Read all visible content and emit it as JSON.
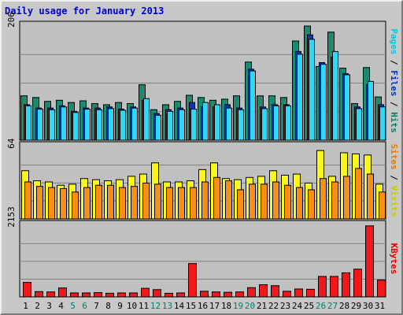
{
  "chart_data": {
    "type": "bar",
    "title": "Daily usage for January 2013",
    "categories": [
      "1",
      "2",
      "3",
      "4",
      "5",
      "6",
      "7",
      "8",
      "9",
      "10",
      "11",
      "12",
      "13",
      "14",
      "15",
      "16",
      "17",
      "18",
      "19",
      "20",
      "21",
      "22",
      "23",
      "24",
      "25",
      "26",
      "27",
      "28",
      "29",
      "30",
      "31"
    ],
    "weekend_days": [
      "5",
      "6",
      "12",
      "13",
      "19",
      "20",
      "26",
      "27"
    ],
    "panels": [
      {
        "name": "hits-files-pages",
        "ymax_label": "206",
        "ymax": 206,
        "side_label": [
          {
            "text": "Pages",
            "color": "#00c8e8"
          },
          {
            "text": " / ",
            "color": "#000000"
          },
          {
            "text": "Files",
            "color": "#0030d0"
          },
          {
            "text": " / ",
            "color": "#000000"
          },
          {
            "text": "Hits",
            "color": "#00806a"
          }
        ],
        "series": [
          {
            "name": "Hits",
            "color": "#1b8a6e",
            "values": [
              80,
              77,
              70,
              72,
              68,
              71,
              66,
              64,
              68,
              66,
              100,
              55,
              64,
              70,
              81,
              77,
              72,
              74,
              80,
              141,
              80,
              80,
              77,
              179,
              206,
              133,
              195,
              130,
              66,
              131,
              78
            ]
          },
          {
            "name": "Files",
            "color": "#0a34c0",
            "values": [
              64,
              58,
              58,
              62,
              52,
              58,
              58,
              60,
              56,
              60,
              72,
              48,
              55,
              58,
              68,
              60,
              60,
              64,
              58,
              128,
              60,
              64,
              64,
              160,
              190,
              140,
              150,
              120,
              60,
              100,
              64
            ]
          },
          {
            "name": "Pages",
            "color": "#30d8f8",
            "values": [
              62,
              56,
              55,
              60,
              50,
              56,
              55,
              57,
              54,
              58,
              75,
              45,
              52,
              55,
              56,
              68,
              64,
              58,
              55,
              125,
              57,
              62,
              62,
              155,
              182,
              137,
              160,
              118,
              57,
              106,
              60
            ]
          }
        ]
      },
      {
        "name": "visits-sites",
        "ymax_label": "64",
        "ymax": 64,
        "side_label": [
          {
            "text": "Sites",
            "color": "#e87800"
          },
          {
            "text": " / ",
            "color": "#000000"
          },
          {
            "text": "Visits",
            "color": "#c8c800"
          }
        ],
        "series": [
          {
            "name": "Visits",
            "color": "#f8f820",
            "values": [
              43,
              34,
              33,
              30,
              31,
              36,
              35,
              34,
              35,
              38,
              40,
              50,
              33,
              33,
              34,
              44,
              50,
              36,
              35,
              37,
              38,
              43,
              39,
              40,
              32,
              61,
              38,
              59,
              58,
              57,
              31
            ]
          },
          {
            "name": "Sites",
            "color": "#f89018",
            "values": [
              33,
              29,
              28,
              27,
              24,
              28,
              30,
              30,
              28,
              29,
              32,
              31,
              28,
              28,
              28,
              33,
              37,
              34,
              26,
              31,
              31,
              33,
              30,
              28,
              26,
              36,
              33,
              38,
              45,
              40,
              24
            ]
          }
        ]
      },
      {
        "name": "kbytes",
        "ymax_label": "2153",
        "ymax": 2153,
        "side_label": [
          {
            "text": "KBytes",
            "color": "#e80000"
          }
        ],
        "series": [
          {
            "name": "KBytes",
            "color": "#f01818",
            "values": [
              440,
              160,
              150,
              270,
              120,
              120,
              130,
              110,
              120,
              120,
              260,
              220,
              110,
              120,
              1010,
              170,
              150,
              140,
              150,
              280,
              370,
              340,
              170,
              240,
              230,
              620,
              620,
              730,
              840,
              2153,
              510
            ]
          }
        ]
      }
    ]
  }
}
